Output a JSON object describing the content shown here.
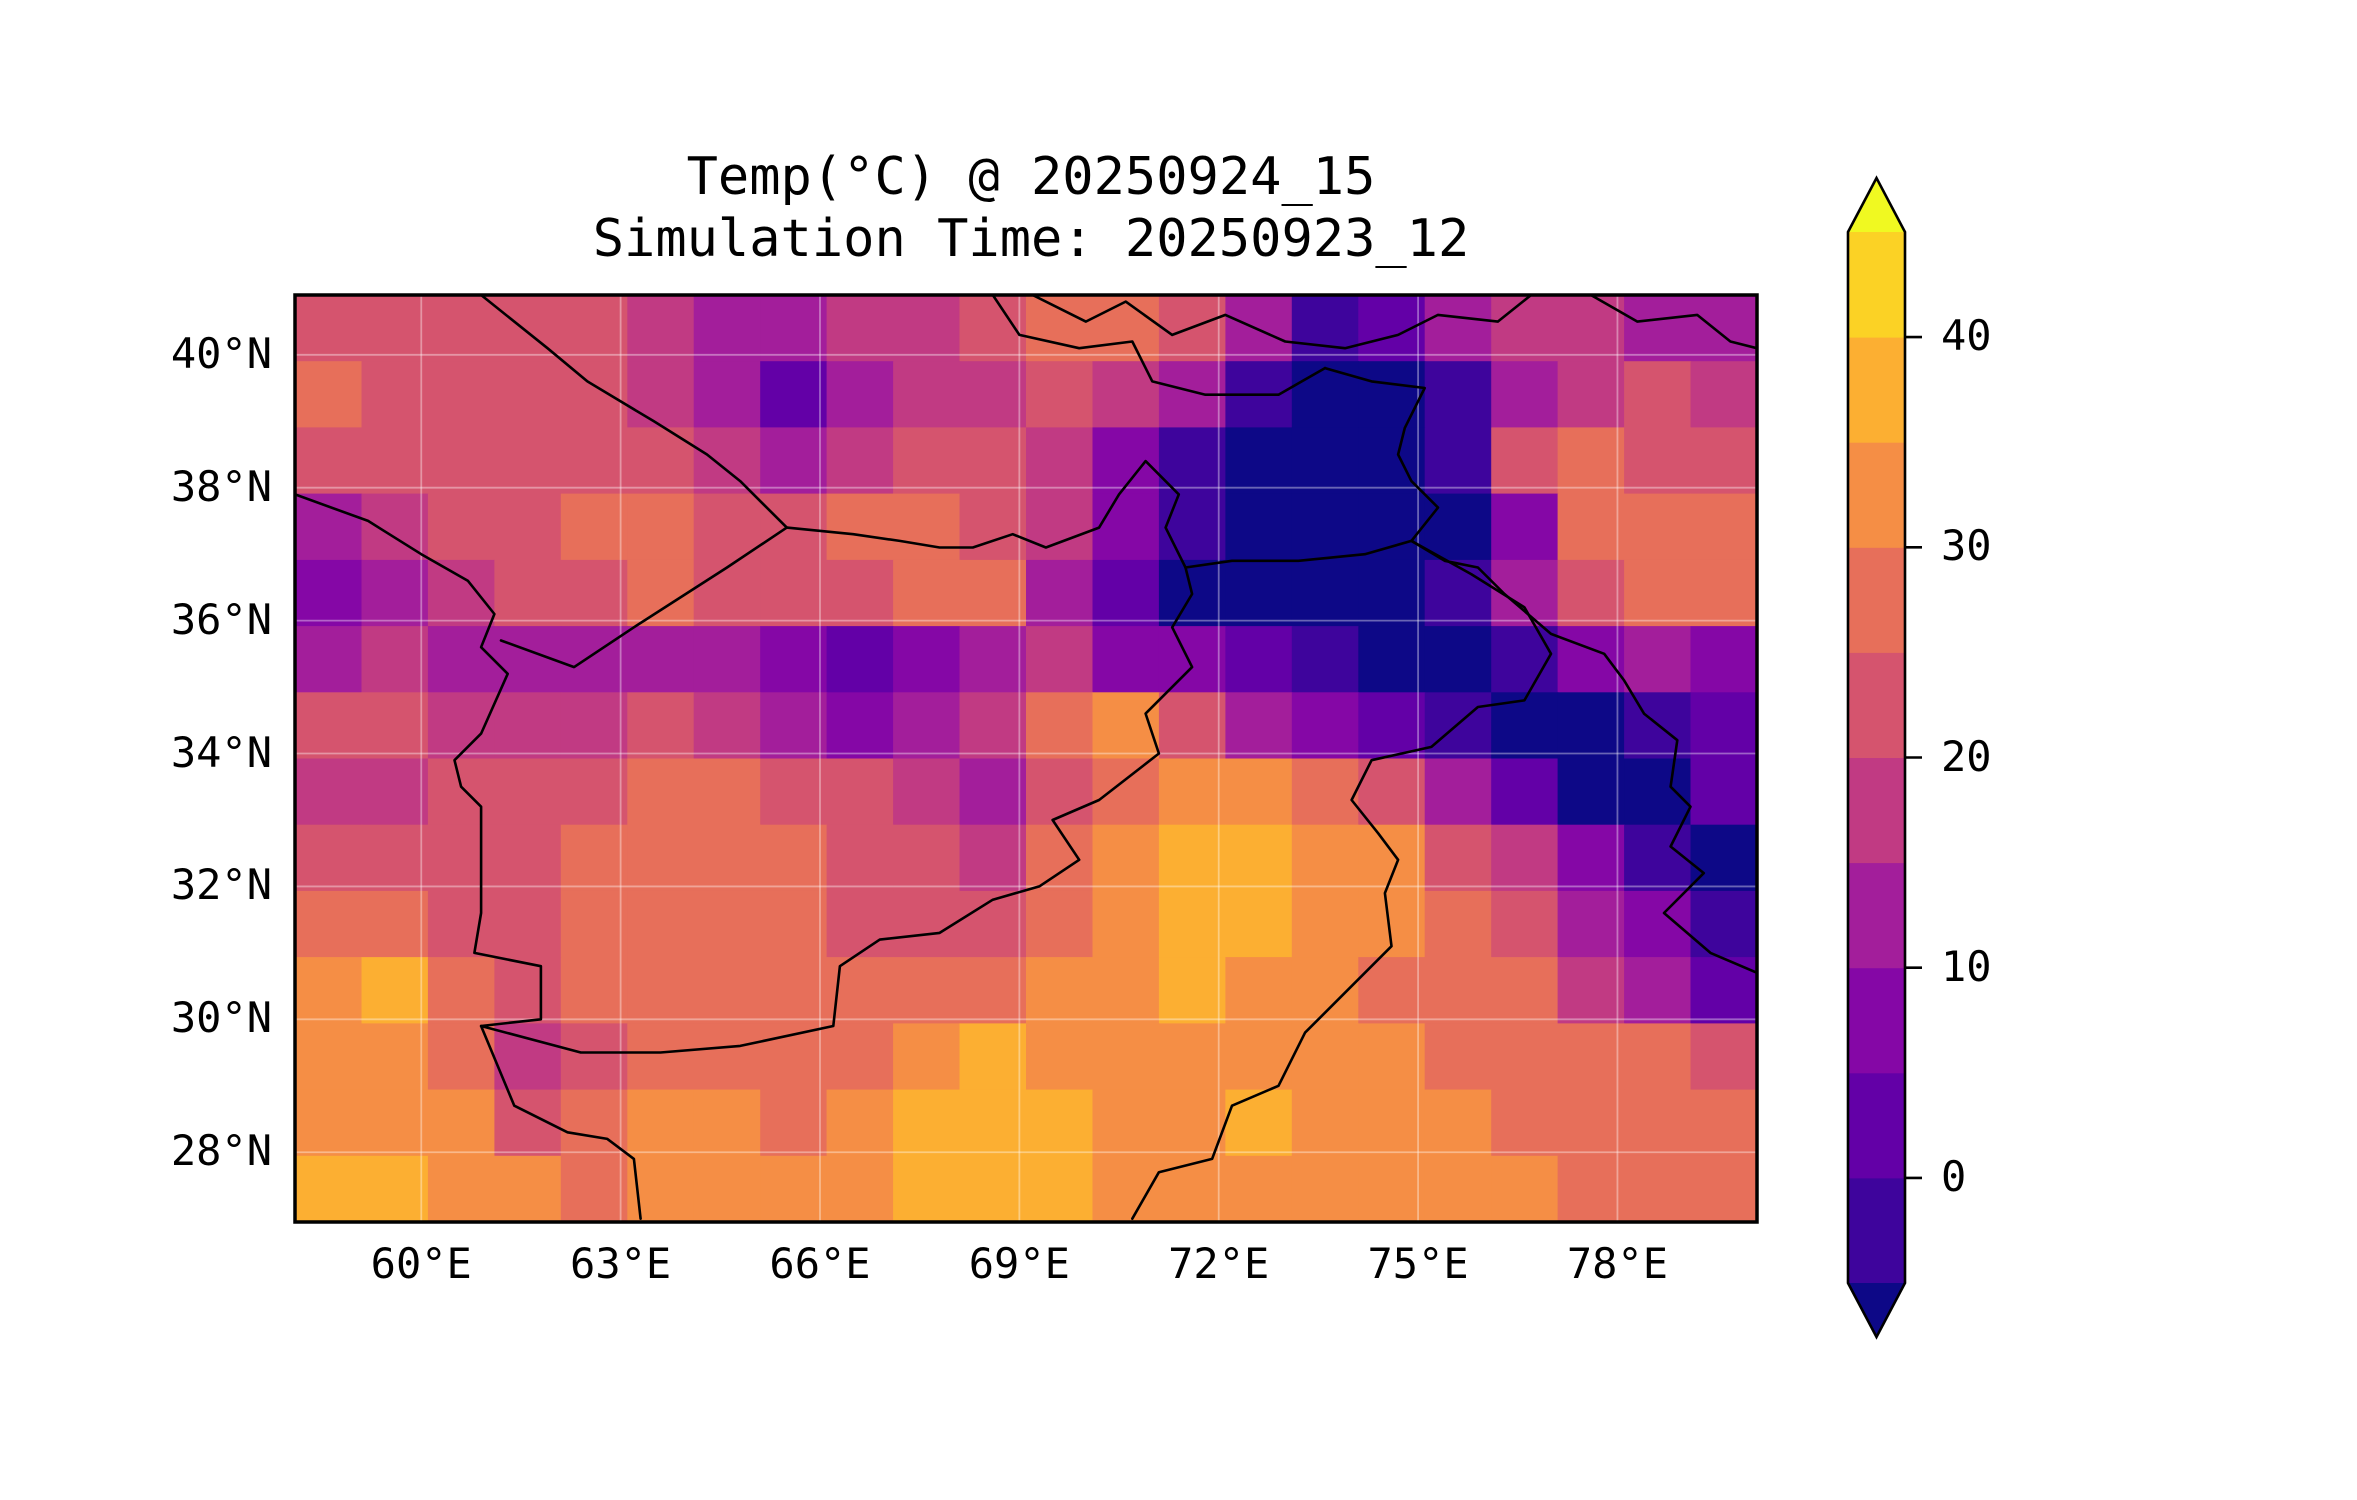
{
  "title": {
    "line1": "Temp(°C) @ 20250924_15",
    "line2": "Simulation Time: 20250923_12"
  },
  "axes": {
    "x_ticks": [
      {
        "lon": 60,
        "label": "60°E"
      },
      {
        "lon": 63,
        "label": "63°E"
      },
      {
        "lon": 66,
        "label": "66°E"
      },
      {
        "lon": 69,
        "label": "69°E"
      },
      {
        "lon": 72,
        "label": "72°E"
      },
      {
        "lon": 75,
        "label": "75°E"
      },
      {
        "lon": 78,
        "label": "78°E"
      }
    ],
    "y_ticks": [
      {
        "lat": 40,
        "label": "40°N"
      },
      {
        "lat": 38,
        "label": "38°N"
      },
      {
        "lat": 36,
        "label": "36°N"
      },
      {
        "lat": 34,
        "label": "34°N"
      },
      {
        "lat": 32,
        "label": "32°N"
      },
      {
        "lat": 30,
        "label": "30°N"
      },
      {
        "lat": 28,
        "label": "28°N"
      }
    ]
  },
  "colorbar": {
    "levels": [
      -5,
      0,
      5,
      10,
      15,
      20,
      25,
      30,
      35,
      40,
      45
    ],
    "band_colors": [
      "#3e049c",
      "#6300a7",
      "#8507a6",
      "#a31e9b",
      "#c13a83",
      "#d5546e",
      "#e76f5a",
      "#f58e45",
      "#fcaf32",
      "#fbd225"
    ],
    "under_color": "#0d0887",
    "over_color": "#f0f921",
    "outline_color": "#000000",
    "tick_values": [
      0,
      10,
      20,
      30,
      40
    ],
    "tick_labels": [
      "0",
      "10",
      "20",
      "30",
      "40"
    ]
  },
  "map": {
    "frame_color": "#000000",
    "border_color": "#000000",
    "gridline_color": "#ffffff",
    "gridline_opacity": 0.38,
    "gridlines_lon": [
      60,
      63,
      66,
      69,
      72,
      75,
      78
    ],
    "gridlines_lat": [
      28,
      30,
      32,
      34,
      36,
      38,
      40
    ],
    "borders": [
      {
        "name": "iran-afghanistan-pakistan",
        "points": [
          [
            58.1,
            37.9
          ],
          [
            59.2,
            37.5
          ],
          [
            60.0,
            37.0
          ],
          [
            60.7,
            36.6
          ],
          [
            61.1,
            36.1
          ],
          [
            60.9,
            35.6
          ],
          [
            61.3,
            35.2
          ],
          [
            60.9,
            34.3
          ],
          [
            60.5,
            33.9
          ],
          [
            60.6,
            33.5
          ],
          [
            60.9,
            33.2
          ],
          [
            60.9,
            31.6
          ],
          [
            60.8,
            31.0
          ],
          [
            61.8,
            30.8
          ],
          [
            61.8,
            30.0
          ],
          [
            60.9,
            29.9
          ],
          [
            61.4,
            28.7
          ],
          [
            62.2,
            28.3
          ],
          [
            62.8,
            28.2
          ],
          [
            63.2,
            27.9
          ],
          [
            63.3,
            27.0
          ]
        ]
      },
      {
        "name": "turkmenistan-uzbekistan-afghanistan",
        "points": [
          [
            60.9,
            40.9
          ],
          [
            61.9,
            40.1
          ],
          [
            62.5,
            39.6
          ],
          [
            63.5,
            39.0
          ],
          [
            64.3,
            38.5
          ],
          [
            64.8,
            38.1
          ],
          [
            65.5,
            37.4
          ],
          [
            64.6,
            36.8
          ],
          [
            63.2,
            35.9
          ],
          [
            62.3,
            35.3
          ],
          [
            61.2,
            35.7
          ]
        ]
      },
      {
        "name": "afghanistan-north-amu-darya",
        "points": [
          [
            65.5,
            37.4
          ],
          [
            66.5,
            37.3
          ],
          [
            67.2,
            37.2
          ],
          [
            67.8,
            37.1
          ],
          [
            68.3,
            37.1
          ],
          [
            68.9,
            37.3
          ],
          [
            69.4,
            37.1
          ],
          [
            70.2,
            37.4
          ],
          [
            70.5,
            37.9
          ],
          [
            70.9,
            38.4
          ],
          [
            71.4,
            37.9
          ],
          [
            71.2,
            37.4
          ],
          [
            71.5,
            36.8
          ],
          [
            72.2,
            36.9
          ],
          [
            73.2,
            36.9
          ],
          [
            74.2,
            37.0
          ],
          [
            74.9,
            37.2
          ]
        ]
      },
      {
        "name": "afghanistan-pakistan-durand",
        "points": [
          [
            60.9,
            29.9
          ],
          [
            62.4,
            29.5
          ],
          [
            63.6,
            29.5
          ],
          [
            64.8,
            29.6
          ],
          [
            66.2,
            29.9
          ],
          [
            66.3,
            30.8
          ],
          [
            66.9,
            31.2
          ],
          [
            67.8,
            31.3
          ],
          [
            68.6,
            31.8
          ],
          [
            69.3,
            32.0
          ],
          [
            69.9,
            32.4
          ],
          [
            69.5,
            33.0
          ],
          [
            70.2,
            33.3
          ],
          [
            71.1,
            34.0
          ],
          [
            70.9,
            34.6
          ],
          [
            71.6,
            35.3
          ],
          [
            71.3,
            35.9
          ],
          [
            71.6,
            36.4
          ],
          [
            71.5,
            36.8
          ]
        ]
      },
      {
        "name": "pakistan-india",
        "points": [
          [
            74.9,
            37.2
          ],
          [
            75.8,
            36.7
          ],
          [
            76.6,
            36.2
          ],
          [
            77.0,
            35.5
          ],
          [
            76.6,
            34.8
          ],
          [
            75.9,
            34.7
          ],
          [
            75.2,
            34.1
          ],
          [
            74.3,
            33.9
          ],
          [
            74.0,
            33.3
          ],
          [
            74.4,
            32.8
          ],
          [
            74.7,
            32.4
          ],
          [
            74.5,
            31.9
          ],
          [
            74.6,
            31.1
          ],
          [
            73.9,
            30.4
          ],
          [
            73.3,
            29.8
          ],
          [
            72.9,
            29.0
          ],
          [
            72.2,
            28.7
          ],
          [
            71.9,
            27.9
          ],
          [
            71.1,
            27.7
          ],
          [
            70.7,
            27.0
          ]
        ]
      },
      {
        "name": "china-tajikistan-pamir",
        "points": [
          [
            73.6,
            39.8
          ],
          [
            74.3,
            39.6
          ],
          [
            75.1,
            39.5
          ],
          [
            74.8,
            38.9
          ],
          [
            74.7,
            38.5
          ],
          [
            74.9,
            38.1
          ],
          [
            75.3,
            37.7
          ],
          [
            74.9,
            37.2
          ]
        ]
      },
      {
        "name": "china-india-karakoram",
        "points": [
          [
            74.9,
            37.2
          ],
          [
            75.4,
            36.9
          ],
          [
            75.9,
            36.8
          ],
          [
            76.3,
            36.4
          ],
          [
            77.0,
            35.8
          ],
          [
            77.8,
            35.5
          ],
          [
            78.1,
            35.1
          ],
          [
            78.4,
            34.6
          ],
          [
            78.9,
            34.2
          ],
          [
            78.8,
            33.5
          ],
          [
            79.1,
            33.2
          ],
          [
            78.8,
            32.6
          ],
          [
            79.3,
            32.2
          ],
          [
            78.7,
            31.6
          ],
          [
            79.4,
            31.0
          ],
          [
            80.1,
            30.7
          ]
        ]
      },
      {
        "name": "kyrgyzstan-fergana-north",
        "points": [
          [
            69.2,
            40.9
          ],
          [
            70.0,
            40.5
          ],
          [
            70.6,
            40.8
          ],
          [
            71.3,
            40.3
          ],
          [
            72.1,
            40.6
          ],
          [
            73.0,
            40.2
          ],
          [
            73.9,
            40.1
          ],
          [
            74.7,
            40.3
          ],
          [
            75.3,
            40.6
          ],
          [
            76.2,
            40.5
          ],
          [
            76.7,
            40.9
          ]
        ]
      },
      {
        "name": "tajikistan-fergana-south",
        "points": [
          [
            68.6,
            40.9
          ],
          [
            69.0,
            40.3
          ],
          [
            69.9,
            40.1
          ],
          [
            70.7,
            40.2
          ],
          [
            71.0,
            39.6
          ],
          [
            71.8,
            39.4
          ],
          [
            72.9,
            39.4
          ],
          [
            73.6,
            39.8
          ]
        ]
      },
      {
        "name": "kyrgyzstan-china-northeast",
        "points": [
          [
            77.6,
            40.9
          ],
          [
            78.3,
            40.5
          ],
          [
            79.2,
            40.6
          ],
          [
            79.7,
            40.2
          ],
          [
            80.1,
            40.1
          ]
        ]
      }
    ]
  },
  "chart_data": {
    "type": "heatmap",
    "title": "Temp(°C) @ 20250924_15",
    "subtitle": "Simulation Time: 20250923_12",
    "variable": "2m temperature",
    "units": "°C",
    "colormap": "plasma",
    "extend": "both",
    "levels": [
      -5,
      0,
      5,
      10,
      15,
      20,
      25,
      30,
      35,
      40,
      45
    ],
    "colorbar_ticks": [
      0,
      10,
      20,
      30,
      40
    ],
    "lon_range": [
      58.1,
      80.1
    ],
    "lat_range": [
      26.95,
      40.9
    ],
    "grid_resolution_deg": 1,
    "lon_cell_west_edges": [
      58,
      59,
      60,
      61,
      62,
      63,
      64,
      65,
      66,
      67,
      68,
      69,
      70,
      71,
      72,
      73,
      74,
      75,
      76,
      77,
      78,
      79
    ],
    "lat_cell_north_edges": [
      41,
      40,
      39,
      38,
      37,
      36,
      35,
      34,
      33,
      32,
      31,
      30,
      29,
      28
    ],
    "values_rows_north_to_south": [
      [
        22,
        22,
        22,
        22,
        22,
        17,
        12,
        12,
        17,
        17,
        22,
        27,
        27,
        22,
        12,
        -2,
        2,
        12,
        17,
        17,
        12,
        12
      ],
      [
        27,
        22,
        22,
        22,
        22,
        17,
        12,
        2,
        12,
        17,
        17,
        22,
        17,
        12,
        -2,
        -7,
        -7,
        -2,
        12,
        17,
        22,
        17
      ],
      [
        22,
        22,
        22,
        22,
        22,
        22,
        17,
        12,
        17,
        22,
        22,
        17,
        7,
        -2,
        -7,
        -7,
        -7,
        -2,
        22,
        27,
        22,
        22
      ],
      [
        12,
        17,
        22,
        22,
        27,
        27,
        22,
        22,
        27,
        27,
        22,
        17,
        7,
        -2,
        -7,
        -7,
        -7,
        -7,
        7,
        27,
        27,
        27
      ],
      [
        7,
        12,
        17,
        22,
        22,
        27,
        22,
        22,
        22,
        27,
        27,
        12,
        2,
        -7,
        -7,
        -7,
        -7,
        -2,
        12,
        22,
        27,
        27
      ],
      [
        12,
        17,
        12,
        12,
        12,
        12,
        12,
        7,
        2,
        7,
        12,
        17,
        7,
        7,
        2,
        -2,
        -7,
        -7,
        -2,
        7,
        12,
        7
      ],
      [
        22,
        22,
        17,
        17,
        17,
        22,
        17,
        12,
        7,
        12,
        17,
        27,
        32,
        22,
        12,
        7,
        2,
        -2,
        -7,
        -7,
        -2,
        2
      ],
      [
        17,
        17,
        22,
        22,
        22,
        27,
        27,
        22,
        22,
        17,
        12,
        22,
        27,
        32,
        32,
        27,
        22,
        12,
        2,
        -7,
        -7,
        2
      ],
      [
        22,
        22,
        22,
        22,
        27,
        27,
        27,
        27,
        22,
        22,
        17,
        27,
        32,
        37,
        37,
        32,
        32,
        22,
        17,
        7,
        -2,
        -7
      ],
      [
        27,
        27,
        22,
        22,
        27,
        27,
        27,
        27,
        22,
        22,
        22,
        27,
        32,
        37,
        37,
        32,
        32,
        27,
        22,
        12,
        7,
        -2
      ],
      [
        32,
        37,
        27,
        22,
        27,
        27,
        27,
        27,
        27,
        27,
        27,
        32,
        32,
        37,
        32,
        32,
        27,
        27,
        27,
        17,
        12,
        2
      ],
      [
        32,
        32,
        27,
        17,
        22,
        27,
        27,
        27,
        27,
        32,
        37,
        32,
        32,
        32,
        32,
        32,
        32,
        27,
        27,
        27,
        27,
        22
      ],
      [
        32,
        32,
        32,
        22,
        27,
        32,
        32,
        27,
        32,
        37,
        37,
        37,
        32,
        32,
        37,
        32,
        32,
        32,
        27,
        27,
        27,
        27
      ],
      [
        37,
        37,
        32,
        32,
        27,
        32,
        32,
        32,
        32,
        37,
        37,
        37,
        32,
        32,
        32,
        32,
        32,
        32,
        32,
        27,
        27,
        27
      ]
    ]
  }
}
